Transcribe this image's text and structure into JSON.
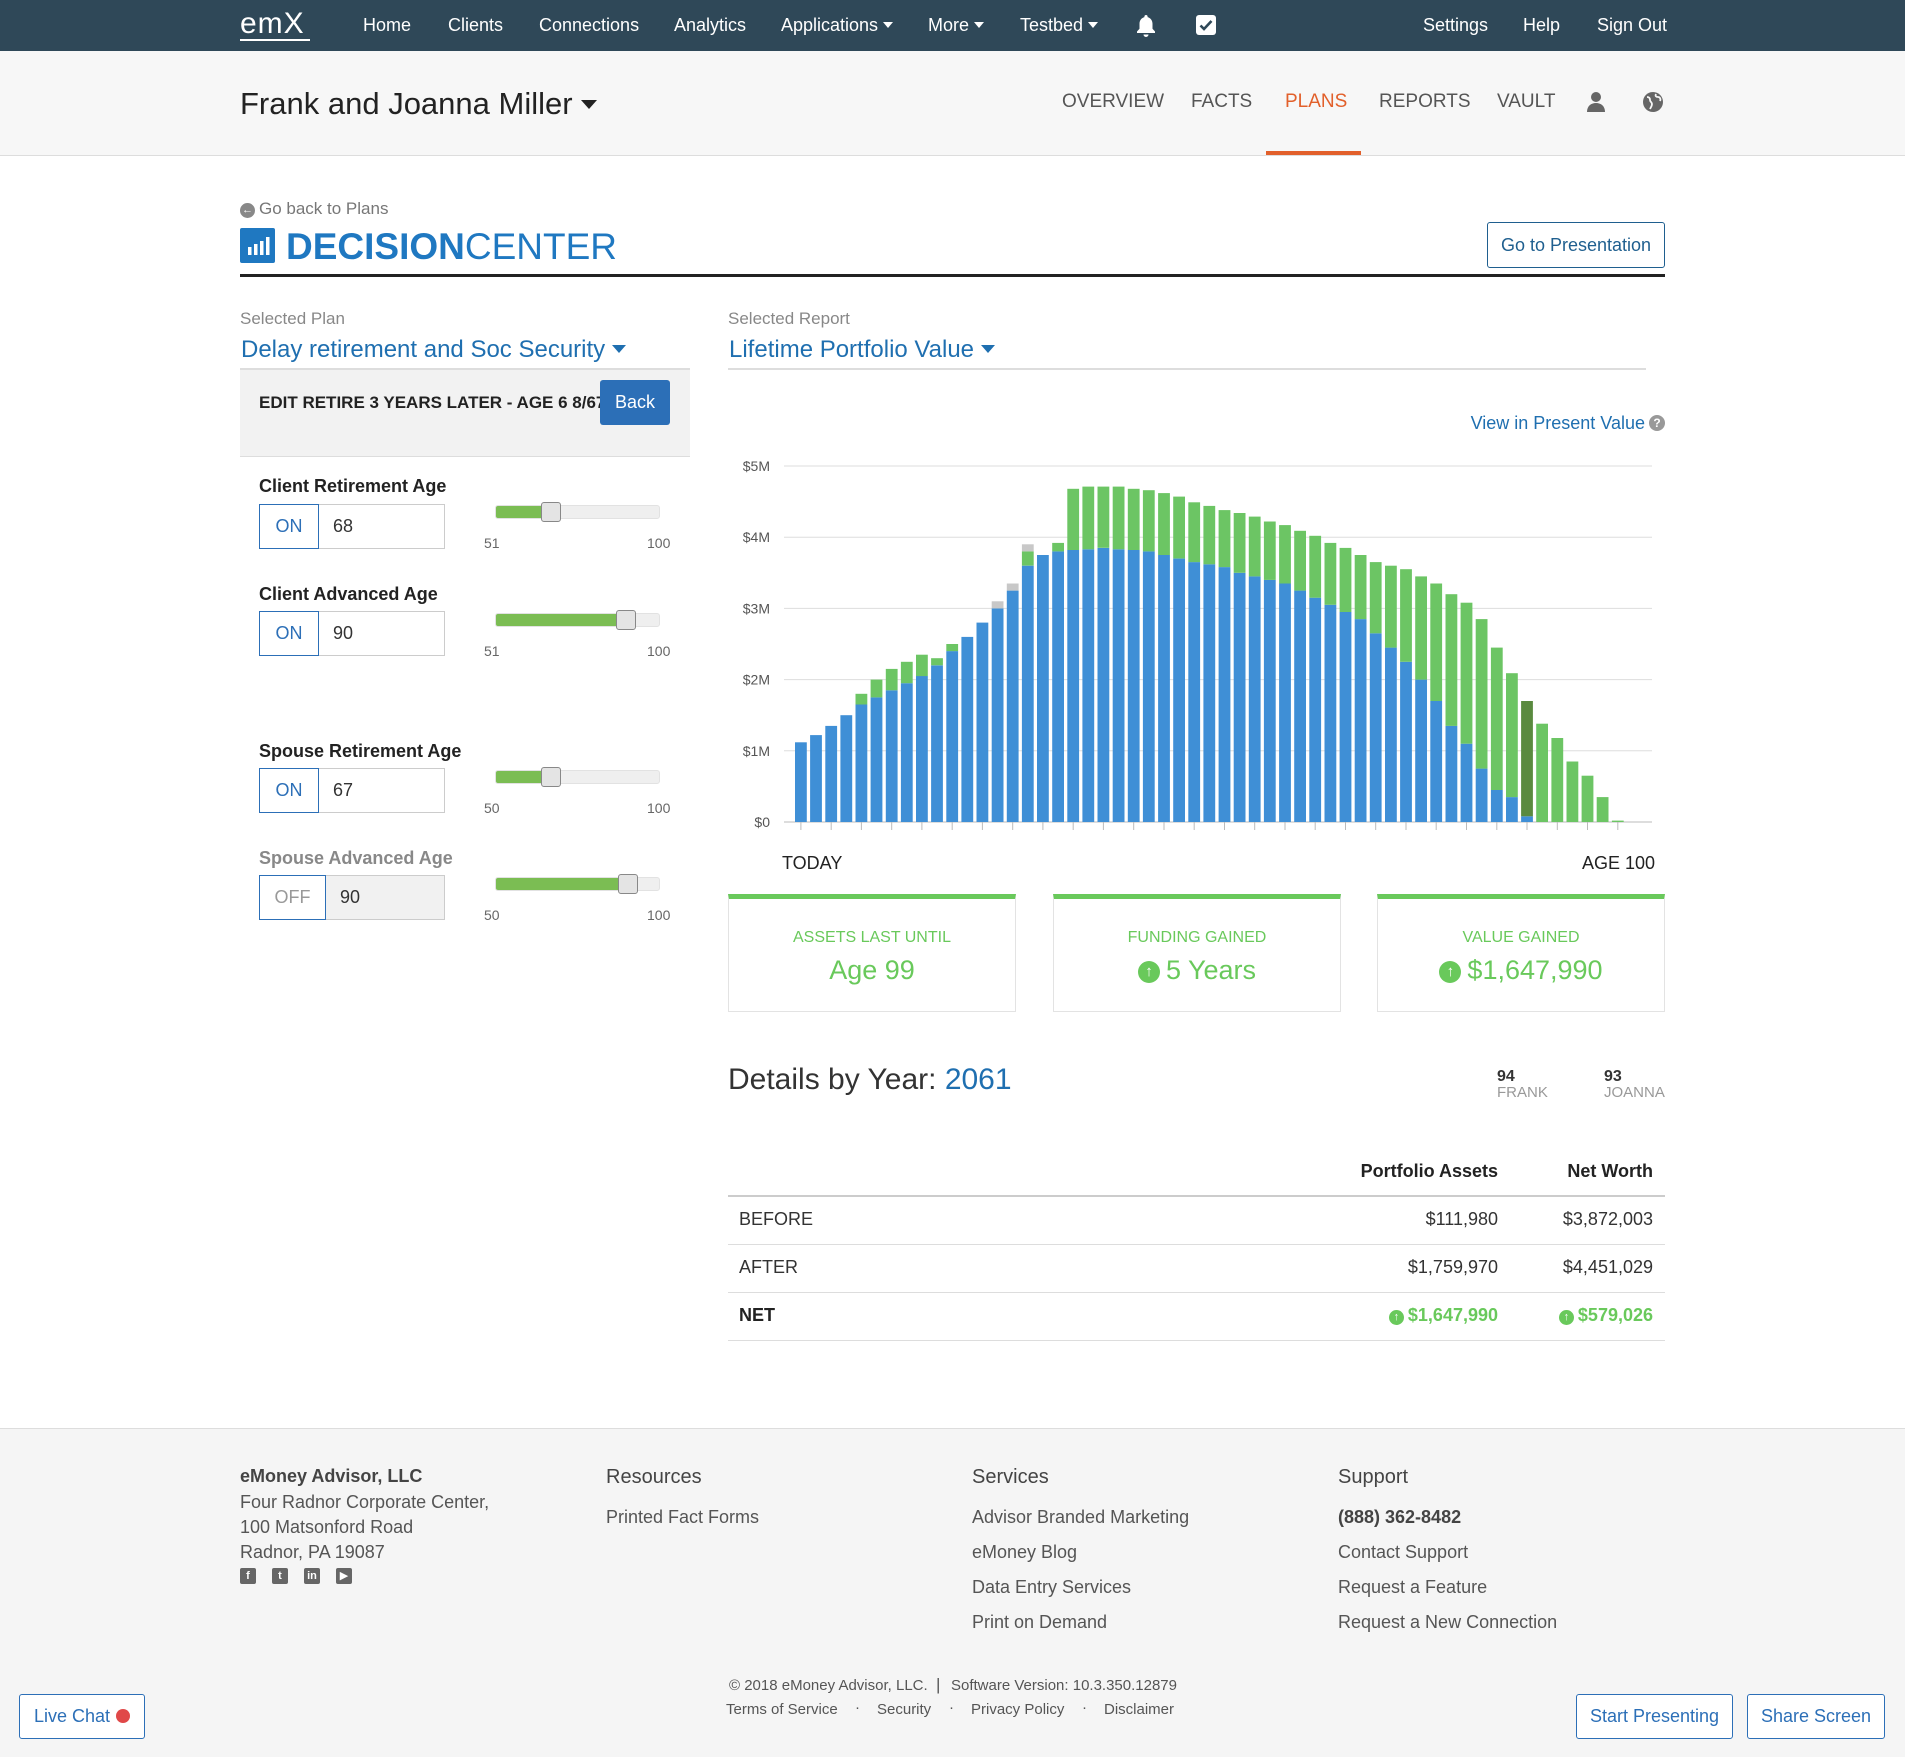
{
  "topnav": {
    "logo": "emX",
    "items": [
      "Home",
      "Clients",
      "Connections",
      "Analytics",
      "Applications",
      "More",
      "Testbed"
    ],
    "right_items": [
      "Settings",
      "Help",
      "Sign Out"
    ],
    "icons": [
      "bell-icon",
      "checkbox-icon"
    ]
  },
  "client": {
    "name": "Frank and Joanna Miller",
    "tabs": [
      "OVERVIEW",
      "FACTS",
      "PLANS",
      "REPORTS",
      "VAULT"
    ],
    "active_tab": "PLANS",
    "accent": "#e2602b"
  },
  "decision_center": {
    "go_back": "Go back to Plans",
    "title_bold": "DECISION",
    "title_light": "CENTER",
    "presentation_button": "Go to Presentation"
  },
  "left_panel": {
    "selected_plan_label": "Selected Plan",
    "selected_plan": "Delay retirement and Soc Security",
    "edit_text": "EDIT RETIRE 3 YEARS LATER - AGE 6 8/67",
    "back_button": "Back",
    "controls": [
      {
        "label": "Client Retirement Age",
        "toggle": "ON",
        "value": "68",
        "min": "51",
        "max": "100",
        "enabled": true
      },
      {
        "label": "Client Advanced Age",
        "toggle": "ON",
        "value": "90",
        "min": "51",
        "max": "100",
        "enabled": true
      },
      {
        "label": "Spouse Retirement Age",
        "toggle": "ON",
        "value": "67",
        "min": "50",
        "max": "100",
        "enabled": true
      },
      {
        "label": "Spouse Advanced Age",
        "toggle": "OFF",
        "value": "90",
        "min": "50",
        "max": "100",
        "enabled": false
      }
    ]
  },
  "report": {
    "selected_report_label": "Selected Report",
    "selected_report": "Lifetime Portfolio Value",
    "view_present_value": "View in Present Value",
    "axis_start": "TODAY",
    "axis_end": "AGE 100"
  },
  "chart_data": {
    "type": "bar",
    "stacked": true,
    "y_tick_labels": [
      "$0",
      "$1M",
      "$2M",
      "$3M",
      "$4M",
      "$5M"
    ],
    "ylim": [
      0,
      5
    ],
    "ylabel_units": "$M",
    "x_start_label": "TODAY",
    "x_end_label": "AGE 100",
    "series": [
      {
        "name": "",
        "color": "#3f8fd6",
        "values": [
          1.12,
          1.22,
          1.35,
          1.5,
          1.65,
          1.75,
          1.85,
          1.95,
          2.05,
          2.2,
          2.4,
          2.6,
          2.8,
          3.0,
          3.25,
          3.6,
          3.75,
          3.8,
          3.82,
          3.83,
          3.85,
          3.83,
          3.82,
          3.8,
          3.75,
          3.7,
          3.65,
          3.62,
          3.58,
          3.5,
          3.45,
          3.4,
          3.35,
          3.25,
          3.15,
          3.05,
          2.95,
          2.85,
          2.65,
          2.45,
          2.25,
          2.0,
          1.7,
          1.35,
          1.1,
          0.75,
          0.45,
          0.35,
          0.08,
          0,
          0,
          0,
          0,
          0,
          0
        ]
      },
      {
        "name": "",
        "color": "#6cc564",
        "values": [
          0,
          0,
          0,
          0,
          0.15,
          0.25,
          0.3,
          0.3,
          0.3,
          0.1,
          0.1,
          0,
          0,
          0,
          0,
          0.2,
          0,
          0.12,
          0.86,
          0.88,
          0.86,
          0.88,
          0.86,
          0.86,
          0.87,
          0.87,
          0.84,
          0.82,
          0.8,
          0.84,
          0.84,
          0.82,
          0.82,
          0.84,
          0.87,
          0.87,
          0.9,
          0.9,
          1.0,
          1.15,
          1.3,
          1.45,
          1.65,
          1.85,
          1.98,
          2.1,
          2.0,
          1.74,
          1.62,
          1.38,
          1.18,
          0.85,
          0.65,
          0.35,
          0.02
        ]
      },
      {
        "name": "",
        "color": "#c8c8c8",
        "values": [
          0,
          0,
          0,
          0,
          0,
          0,
          0,
          0,
          0,
          0,
          0,
          0,
          0,
          0.1,
          0.1,
          0.1,
          0,
          0,
          0,
          0,
          0,
          0,
          0,
          0,
          0,
          0,
          0,
          0,
          0,
          0,
          0,
          0,
          0,
          0,
          0,
          0,
          0,
          0,
          0,
          0,
          0,
          0,
          0,
          0,
          0,
          0,
          0,
          0,
          0,
          0,
          0,
          0,
          0,
          0,
          0
        ]
      }
    ],
    "highlight_index": 48,
    "highlight_color": "#5a8a3f",
    "grid": true
  },
  "stats": [
    {
      "label": "ASSETS LAST UNTIL",
      "value": "Age 99",
      "arrow": false
    },
    {
      "label": "FUNDING GAINED",
      "value": "5 Years",
      "arrow": true
    },
    {
      "label": "VALUE GAINED",
      "value": "$1,647,990",
      "arrow": true
    }
  ],
  "details": {
    "title": "Details by Year:",
    "year": "2061",
    "ages": [
      {
        "age": "94",
        "name": "FRANK"
      },
      {
        "age": "93",
        "name": "JOANNA"
      }
    ],
    "headers": [
      "Portfolio Assets",
      "Net Worth"
    ],
    "rows": [
      {
        "label": "BEFORE",
        "portfolio": "$111,980",
        "net_worth": "$3,872,003"
      },
      {
        "label": "AFTER",
        "portfolio": "$1,759,970",
        "net_worth": "$4,451,029"
      },
      {
        "label": "NET",
        "portfolio": "$1,647,990",
        "net_worth": "$579,026"
      }
    ]
  },
  "footer": {
    "company": "eMoney Advisor, LLC",
    "address": [
      "Four Radnor Corporate Center,",
      "100 Matsonford Road",
      "Radnor, PA 19087"
    ],
    "resources_title": "Resources",
    "resources": [
      "Printed Fact Forms"
    ],
    "services_title": "Services",
    "services": [
      "Advisor Branded Marketing",
      "eMoney Blog",
      "Data Entry Services",
      "Print on Demand"
    ],
    "support_title": "Support",
    "support": [
      "(888) 362-8482",
      "Contact Support",
      "Request a Feature",
      "Request a New Connection"
    ],
    "copyright": "© 2018 eMoney Advisor, LLC.",
    "version": "Software Version: 10.3.350.12879",
    "legal_links": [
      "Terms of Service",
      "Security",
      "Privacy Policy",
      "Disclaimer"
    ],
    "live_chat": "Live Chat",
    "start_presenting": "Start Presenting",
    "share_screen": "Share Screen"
  }
}
